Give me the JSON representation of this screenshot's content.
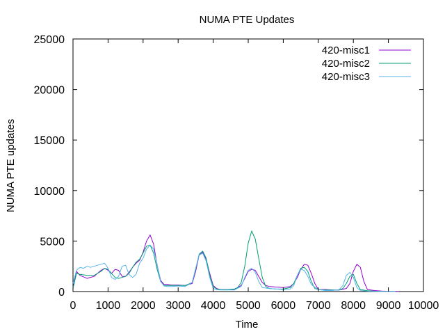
{
  "chart_data": {
    "type": "line",
    "title": "NUMA PTE Updates",
    "xlabel": "Time",
    "ylabel": "NUMA PTE updates",
    "xlim": [
      0,
      10000
    ],
    "ylim": [
      0,
      25000
    ],
    "xticks": [
      0,
      1000,
      2000,
      3000,
      4000,
      5000,
      6000,
      7000,
      8000,
      9000,
      10000
    ],
    "yticks": [
      0,
      5000,
      10000,
      15000,
      20000,
      25000
    ],
    "grid": false,
    "legend_position": "top-right",
    "series": [
      {
        "name": "420-misc1",
        "color": "#9400d3",
        "x": [
          0,
          100,
          200,
          400,
          600,
          800,
          900,
          1000,
          1100,
          1200,
          1300,
          1400,
          1500,
          1600,
          1700,
          1800,
          1900,
          2000,
          2100,
          2200,
          2300,
          2400,
          2500,
          2600,
          2700,
          2800,
          3000,
          3200,
          3400,
          3500,
          3600,
          3700,
          3800,
          3900,
          4000,
          4100,
          4200,
          4400,
          4600,
          4800,
          4900,
          5000,
          5100,
          5200,
          5300,
          5400,
          5500,
          5600,
          5800,
          6000,
          6200,
          6300,
          6400,
          6500,
          6600,
          6700,
          6800,
          6900,
          7000,
          7200,
          7400,
          7600,
          7800,
          7900,
          8000,
          8100,
          8200,
          8300,
          8400,
          8600,
          8800,
          9000,
          9200,
          9300
        ],
        "y": [
          400,
          2000,
          1600,
          1300,
          1500,
          2100,
          2300,
          2100,
          1800,
          2200,
          2100,
          1500,
          1500,
          1900,
          2400,
          2800,
          3100,
          3900,
          5000,
          5600,
          4700,
          2600,
          1100,
          700,
          700,
          650,
          650,
          600,
          800,
          2000,
          3600,
          3900,
          3200,
          1800,
          600,
          300,
          200,
          200,
          200,
          600,
          1300,
          2000,
          2200,
          2100,
          1500,
          900,
          600,
          500,
          450,
          400,
          500,
          800,
          1400,
          2200,
          2700,
          2600,
          1800,
          800,
          200,
          200,
          150,
          150,
          300,
          800,
          2000,
          2700,
          2400,
          1000,
          200,
          100,
          50,
          30,
          20,
          10
        ]
      },
      {
        "name": "420-misc2",
        "color": "#009e73",
        "x": [
          0,
          100,
          200,
          400,
          600,
          800,
          900,
          1000,
          1100,
          1200,
          1300,
          1400,
          1500,
          1600,
          1700,
          1800,
          1900,
          2000,
          2100,
          2200,
          2300,
          2400,
          2500,
          2600,
          2700,
          2800,
          3000,
          3200,
          3400,
          3500,
          3600,
          3700,
          3800,
          3900,
          4000,
          4100,
          4200,
          4400,
          4600,
          4700,
          4800,
          4900,
          5000,
          5100,
          5200,
          5300,
          5400,
          5500,
          5600,
          5800,
          6000,
          6200,
          6300,
          6400,
          6500,
          6600,
          6700,
          6800,
          6900,
          7000,
          7200,
          7400,
          7600,
          7700,
          7800,
          7900,
          8000,
          8100,
          8200,
          8400,
          8600,
          8800,
          9000,
          9200
        ],
        "y": [
          300,
          1800,
          1700,
          1600,
          1600,
          2000,
          2300,
          2200,
          1800,
          1400,
          1300,
          1400,
          1500,
          1800,
          2400,
          2900,
          3200,
          3800,
          4500,
          4600,
          3800,
          2200,
          1000,
          600,
          600,
          600,
          600,
          600,
          900,
          2200,
          3700,
          4000,
          3300,
          1600,
          500,
          250,
          200,
          200,
          250,
          400,
          900,
          2500,
          4800,
          6000,
          5200,
          3300,
          1400,
          500,
          300,
          250,
          250,
          400,
          800,
          1600,
          2300,
          2400,
          2000,
          1000,
          300,
          200,
          150,
          150,
          150,
          300,
          800,
          1500,
          1700,
          800,
          200,
          80,
          40,
          20,
          10,
          5
        ]
      },
      {
        "name": "420-misc3",
        "color": "#56b4e9",
        "x": [
          0,
          100,
          200,
          300,
          400,
          500,
          600,
          700,
          800,
          900,
          1000,
          1100,
          1200,
          1300,
          1400,
          1500,
          1600,
          1700,
          1800,
          1900,
          2000,
          2100,
          2200,
          2300,
          2400,
          2500,
          2600,
          2700,
          2800,
          3000,
          3200,
          3400,
          3500,
          3600,
          3700,
          3800,
          3900,
          4000,
          4100,
          4200,
          4400,
          4600,
          4800,
          4900,
          5000,
          5100,
          5200,
          5300,
          5400,
          5600,
          5800,
          6000,
          6200,
          6300,
          6400,
          6500,
          6600,
          6700,
          6800,
          7000,
          7200,
          7400,
          7600,
          7700,
          7800,
          7900,
          8000,
          8100,
          8200,
          8400,
          8600,
          8800,
          9000,
          9200
        ],
        "y": [
          800,
          2100,
          2400,
          2300,
          2500,
          2400,
          2500,
          2600,
          2700,
          2800,
          2300,
          1400,
          1200,
          1500,
          2500,
          2600,
          1700,
          1400,
          1700,
          2800,
          3300,
          4200,
          4600,
          4200,
          2700,
          1000,
          550,
          500,
          500,
          550,
          500,
          900,
          2300,
          3600,
          3800,
          3000,
          1400,
          300,
          200,
          150,
          150,
          150,
          500,
          1400,
          2100,
          2300,
          1900,
          1000,
          400,
          300,
          250,
          200,
          250,
          600,
          1600,
          2200,
          2100,
          1500,
          700,
          200,
          100,
          100,
          200,
          600,
          1600,
          1900,
          1400,
          400,
          100,
          40,
          20,
          10,
          5,
          5
        ]
      }
    ]
  }
}
